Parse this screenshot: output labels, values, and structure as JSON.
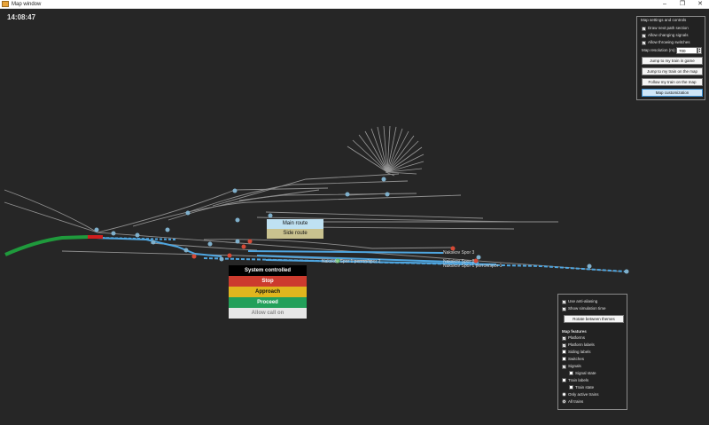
{
  "window": {
    "title": "Map window",
    "controls": {
      "minimize": "–",
      "maximize": "❐",
      "close": "✕"
    }
  },
  "map": {
    "clock": "14:08:47",
    "track_labels": [
      "Nakskov Spor 3",
      "Nakskov Spor 2",
      "Nakskov Spor 1 perron/spor 1",
      "Nakskov Spor 1 perron/spor 2"
    ]
  },
  "route_menu": {
    "items": [
      {
        "label": "Main route",
        "color": "#bfe1f2"
      },
      {
        "label": "Side route",
        "color": "#c9c28f"
      }
    ]
  },
  "signal_menu": {
    "items": [
      {
        "label": "System controlled",
        "color": "#000000",
        "text": "#ffffff"
      },
      {
        "label": "Stop",
        "color": "#cc3b2e",
        "text": "#ffffff"
      },
      {
        "label": "Approach",
        "color": "#e0b61e",
        "text": "#111111"
      },
      {
        "label": "Proceed",
        "color": "#23a05a",
        "text": "#ffffff"
      },
      {
        "label": "Allow call on",
        "color": "#e6e6e6",
        "text": "#8a8a8a"
      }
    ]
  },
  "settings_panel": {
    "title": "Map settings and controls",
    "checkboxes": [
      {
        "label": "Draw next path section",
        "checked": true
      },
      {
        "label": "Allow changing signals",
        "checked": true
      },
      {
        "label": "Allow throwing switches",
        "checked": true
      }
    ],
    "resolution_label": "Map resolution (m):",
    "resolution_value": "700",
    "buttons": [
      "Jump to my train in game",
      "Jump to my train on the map",
      "Follow my train on the map",
      "Map customization"
    ]
  },
  "features_panel": {
    "options": [
      {
        "label": "Use anti-aliasing",
        "checked": true
      },
      {
        "label": "Show simulation time",
        "checked": true
      }
    ],
    "rotate_button": "Rotate between themes",
    "section_title": "Map features",
    "features": [
      {
        "label": "Platforms",
        "checked": true,
        "indent": false
      },
      {
        "label": "Platform labels",
        "checked": true,
        "indent": false
      },
      {
        "label": "Siding labels",
        "checked": false,
        "indent": false
      },
      {
        "label": "Switches",
        "checked": false,
        "indent": false
      },
      {
        "label": "Signals",
        "checked": true,
        "indent": false
      },
      {
        "label": "Signal state",
        "checked": false,
        "indent": true
      },
      {
        "label": "Train labels",
        "checked": false,
        "indent": false
      },
      {
        "label": "Train state",
        "checked": false,
        "indent": true
      }
    ],
    "radios": [
      {
        "label": "Only active trains",
        "selected": false
      },
      {
        "label": "All trains",
        "selected": true
      }
    ]
  },
  "colors": {
    "track": "#8f8f8f",
    "path": "#4fa6e0",
    "train": "#1f9a3c",
    "train_head": "#d01e1e",
    "switch_dot": "#7fb0cc",
    "signal_red": "#d64a36",
    "signal_green": "#5fbf5f"
  }
}
